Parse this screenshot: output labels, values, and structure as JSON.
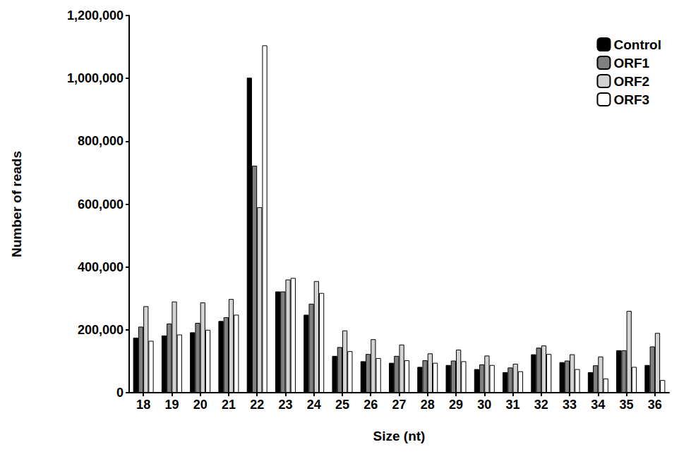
{
  "chart_data": {
    "type": "bar",
    "x_label": "Size (nt)",
    "y_label": "Number of reads",
    "categories": [
      "18",
      "19",
      "20",
      "21",
      "22",
      "23",
      "24",
      "25",
      "26",
      "27",
      "28",
      "29",
      "30",
      "31",
      "32",
      "33",
      "34",
      "35",
      "36"
    ],
    "series": [
      {
        "name": "Control",
        "color": "#000000",
        "values": [
          175000,
          182000,
          192000,
          228000,
          1002000,
          322000,
          248000,
          117000,
          100000,
          95000,
          82000,
          88000,
          75000,
          65000,
          122000,
          97000,
          65000,
          135000,
          88000
        ]
      },
      {
        "name": "ORF1",
        "color": "#808080",
        "values": [
          210000,
          220000,
          222000,
          240000,
          722000,
          322000,
          283000,
          145000,
          123000,
          117000,
          103000,
          102000,
          90000,
          80000,
          143000,
          102000,
          87000,
          135000,
          147000
        ]
      },
      {
        "name": "ORF2",
        "color": "#d3d3d3",
        "values": [
          275000,
          290000,
          287000,
          298000,
          590000,
          360000,
          355000,
          198000,
          170000,
          153000,
          125000,
          137000,
          118000,
          92000,
          150000,
          122000,
          115000,
          260000,
          190000
        ]
      },
      {
        "name": "ORF3",
        "color": "#ffffff",
        "values": [
          165000,
          185000,
          200000,
          248000,
          1105000,
          365000,
          317000,
          132000,
          110000,
          103000,
          95000,
          100000,
          88000,
          68000,
          123000,
          75000,
          45000,
          82000,
          40000
        ]
      }
    ],
    "ylim": [
      0,
      1200000
    ],
    "yticks": [
      {
        "value": 0,
        "label": "0"
      },
      {
        "value": 200000,
        "label": "200,000"
      },
      {
        "value": 400000,
        "label": "400,000"
      },
      {
        "value": 600000,
        "label": "600,000"
      },
      {
        "value": 800000,
        "label": "800,000"
      },
      {
        "value": 1000000,
        "label": "1,000,000"
      },
      {
        "value": 1200000,
        "label": "1,200,000"
      }
    ],
    "grid": false,
    "legend": "top-right"
  }
}
